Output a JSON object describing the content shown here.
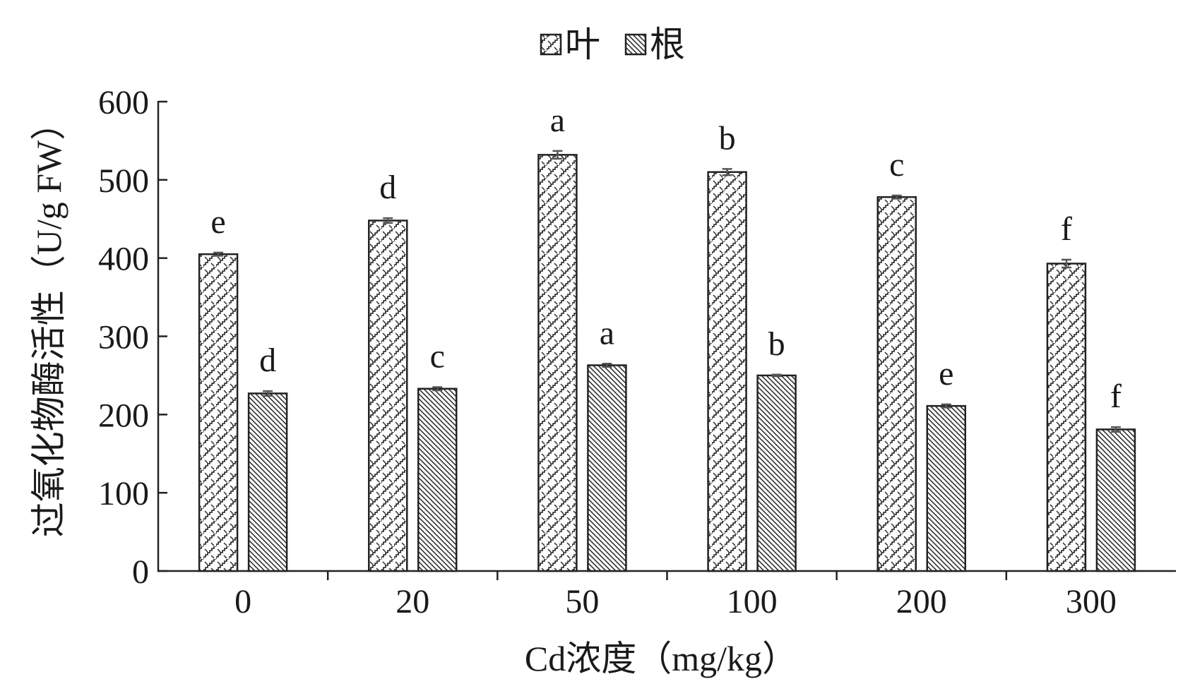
{
  "chart_data": {
    "type": "bar",
    "categories": [
      "0",
      "20",
      "50",
      "100",
      "200",
      "300"
    ],
    "series": [
      {
        "name": "叶",
        "values": [
          405,
          448,
          532,
          510,
          478,
          393
        ],
        "errors": [
          2,
          3,
          5,
          4,
          2,
          5
        ],
        "letters": [
          "e",
          "d",
          "a",
          "b",
          "c",
          "f"
        ]
      },
      {
        "name": "根",
        "values": [
          227,
          233,
          263,
          250,
          211,
          181
        ],
        "errors": [
          3,
          2,
          2,
          1,
          2,
          3
        ],
        "letters": [
          "d",
          "c",
          "a",
          "b",
          "e",
          "f"
        ]
      }
    ],
    "xlabel": "Cd浓度（mg/kg）",
    "ylabel": "过氧化物酶活性（U/g FW）",
    "ylim": [
      0,
      600
    ],
    "yticks": [
      0,
      100,
      200,
      300,
      400,
      500,
      600
    ],
    "grid": false,
    "legend": "top-center",
    "colors": {
      "axis": "#222222",
      "bar_fill": "#ffffff",
      "error_bar": "#555555"
    }
  }
}
